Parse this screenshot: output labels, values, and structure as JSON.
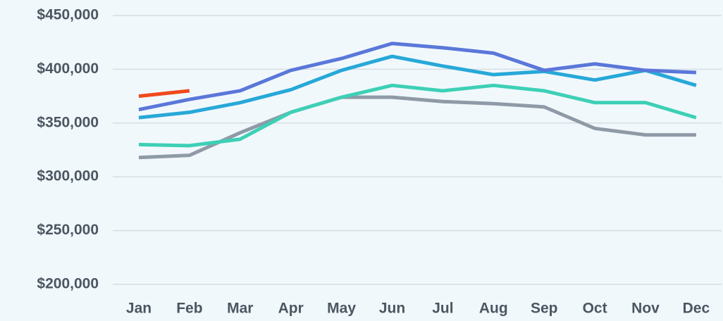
{
  "chart_data": {
    "type": "line",
    "categories": [
      "Jan",
      "Feb",
      "Mar",
      "Apr",
      "May",
      "Jun",
      "Jul",
      "Aug",
      "Sep",
      "Oct",
      "Nov",
      "Dec"
    ],
    "series": [
      {
        "color": "#8f9aa7",
        "values": [
          318000,
          320000,
          341000,
          360000,
          374000,
          374000,
          370000,
          368000,
          365000,
          345000,
          339000,
          339000
        ]
      },
      {
        "color": "#3dd0b6",
        "values": [
          330000,
          329000,
          335000,
          360000,
          374000,
          385000,
          380000,
          385000,
          380000,
          369000,
          369000,
          355000
        ]
      },
      {
        "color": "#27a8d8",
        "values": [
          355000,
          360000,
          369000,
          381000,
          399000,
          412000,
          403000,
          395000,
          398000,
          390000,
          399000,
          385000
        ]
      },
      {
        "color": "#5a77d9",
        "values": [
          362500,
          372000,
          380000,
          399000,
          410000,
          424000,
          420000,
          415000,
          399000,
          405000,
          399000,
          397000
        ]
      },
      {
        "color": "#f0491c",
        "values": [
          375000,
          380000,
          null,
          null,
          null,
          null,
          null,
          null,
          null,
          null,
          null,
          null
        ]
      }
    ],
    "ylim": [
      200000,
      450000
    ],
    "yticks": [
      {
        "value": 200000,
        "label": "$200,000"
      },
      {
        "value": 250000,
        "label": "$250,000"
      },
      {
        "value": 300000,
        "label": "$300,000"
      },
      {
        "value": 350000,
        "label": "$350,000"
      },
      {
        "value": 400000,
        "label": "$400,000"
      },
      {
        "value": 450000,
        "label": "$450,000"
      }
    ],
    "grid": true
  }
}
